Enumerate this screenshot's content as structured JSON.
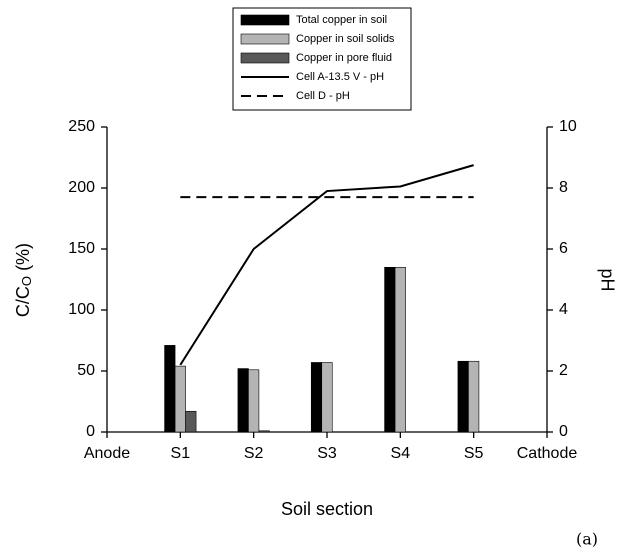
{
  "chart_data": {
    "type": "bar",
    "ylabel": {
      "main": "C/C",
      "sub": "O",
      "unit": " (%)"
    },
    "y2label": "pH",
    "xlabel": "Soil section",
    "annotation": "(a)",
    "categories": [
      "Anode",
      "S1",
      "S2",
      "S3",
      "S4",
      "S5",
      "Cathode"
    ],
    "series": [
      {
        "name": "Total copper in soil",
        "type": "bar",
        "color": "#000000",
        "values": [
          null,
          71,
          52,
          57,
          135,
          58,
          null
        ]
      },
      {
        "name": "Copper in soil solids",
        "type": "bar",
        "color": "#b4b4b4",
        "values": [
          null,
          54,
          51,
          57,
          135,
          58,
          null
        ]
      },
      {
        "name": "Copper in pore fluid",
        "type": "bar",
        "color": "#595959",
        "values": [
          null,
          17,
          1,
          null,
          null,
          null,
          null
        ]
      },
      {
        "name": "Cell A-13.5 V - pH",
        "type": "line",
        "axis": "y2",
        "color": "#000000",
        "dash": false,
        "values": [
          null,
          2.2,
          6.0,
          7.9,
          8.05,
          8.75,
          null
        ]
      },
      {
        "name": "Cell D - pH",
        "type": "line",
        "axis": "y2",
        "color": "#000000",
        "dash": true,
        "values": [
          null,
          7.7,
          7.7,
          7.7,
          7.7,
          7.7,
          null
        ]
      }
    ],
    "ylim": [
      0,
      250
    ],
    "yticks": [
      0,
      50,
      100,
      150,
      200,
      250
    ],
    "y2lim": [
      0,
      10
    ],
    "y2ticks": [
      0,
      2,
      4,
      6,
      8,
      10
    ],
    "legend": "top",
    "grid": false
  }
}
